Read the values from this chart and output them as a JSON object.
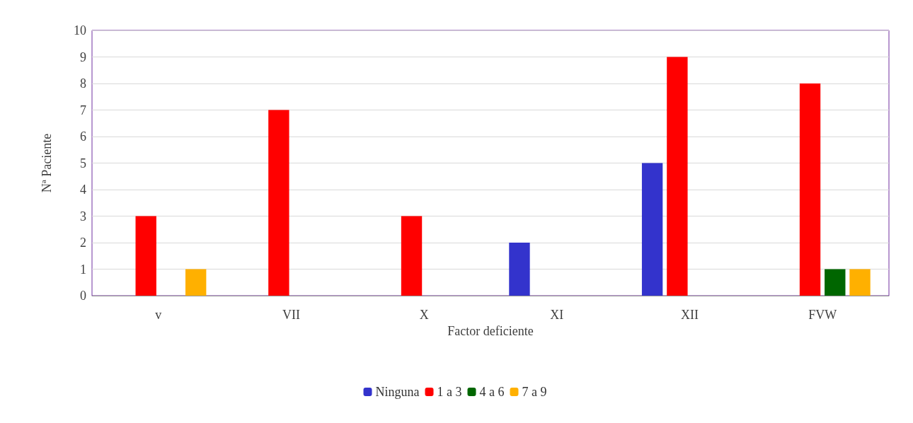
{
  "chart_data": {
    "type": "bar",
    "xlabel": "Factor deficiente",
    "ylabel": "Nª Paciente",
    "categories": [
      "v",
      "VII",
      "X",
      "XI",
      "XII",
      "FVW"
    ],
    "series": [
      {
        "name": "Ninguna",
        "color": "#3333cc",
        "values": [
          0,
          0,
          0,
          2,
          5,
          0
        ]
      },
      {
        "name": "1 a 3",
        "color": "#ff0000",
        "values": [
          3,
          7,
          3,
          0,
          9,
          8
        ]
      },
      {
        "name": "4 a 6",
        "color": "#006600",
        "values": [
          0,
          0,
          0,
          0,
          0,
          1
        ]
      },
      {
        "name": "7 a 9",
        "color": "#ffb000",
        "values": [
          1,
          0,
          0,
          0,
          0,
          1
        ]
      }
    ],
    "ylim": [
      0,
      10
    ],
    "yticks": [
      0,
      1,
      2,
      3,
      4,
      5,
      6,
      7,
      8,
      9,
      10
    ],
    "grid": "y",
    "legend": "bottom"
  }
}
